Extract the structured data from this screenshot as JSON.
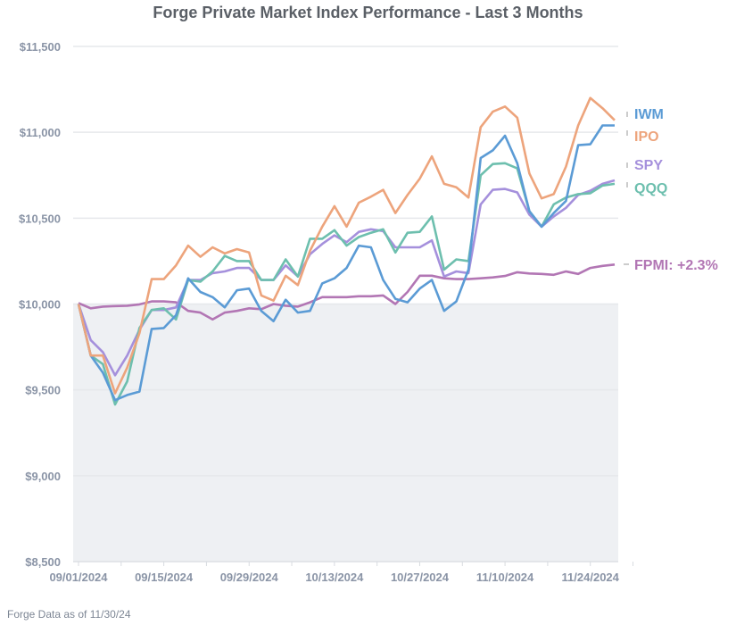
{
  "chart_data": {
    "type": "line",
    "title": "Forge Private Market Index Performance - Last 3 Months",
    "footer": "Forge Data as of 11/30/24",
    "ylim": [
      8500,
      11500
    ],
    "yticks": [
      "$11,500",
      "$11,000",
      "$10,500",
      "$10,000",
      "$9,500",
      "$9,000",
      "$8,500"
    ],
    "ytick_values": [
      11500,
      11000,
      10500,
      10000,
      9500,
      9000,
      8500
    ],
    "xticks": [
      "09/01/2024",
      "09/15/2024",
      "09/29/2024",
      "10/13/2024",
      "10/27/2024",
      "11/10/2024",
      "11/24/2024"
    ],
    "xtick_dates": [
      "2024-09-01",
      "2024-09-15",
      "2024-09-29",
      "2024-10-13",
      "2024-10-27",
      "2024-11-10",
      "2024-11-24"
    ],
    "xlim": [
      "2024-09-01",
      "2024-11-30"
    ],
    "baseline": 10000,
    "shade_below_baseline": true,
    "grid": true,
    "legend": "right, end-of-line labels",
    "x": [
      "2024-09-01",
      "2024-09-03",
      "2024-09-05",
      "2024-09-07",
      "2024-09-09",
      "2024-09-11",
      "2024-09-13",
      "2024-09-15",
      "2024-09-17",
      "2024-09-19",
      "2024-09-21",
      "2024-09-23",
      "2024-09-25",
      "2024-09-27",
      "2024-09-29",
      "2024-10-01",
      "2024-10-03",
      "2024-10-05",
      "2024-10-07",
      "2024-10-09",
      "2024-10-11",
      "2024-10-13",
      "2024-10-15",
      "2024-10-17",
      "2024-10-19",
      "2024-10-21",
      "2024-10-23",
      "2024-10-25",
      "2024-10-27",
      "2024-10-29",
      "2024-10-31",
      "2024-11-02",
      "2024-11-04",
      "2024-11-06",
      "2024-11-08",
      "2024-11-10",
      "2024-11-12",
      "2024-11-14",
      "2024-11-16",
      "2024-11-18",
      "2024-11-20",
      "2024-11-22",
      "2024-11-24",
      "2024-11-26",
      "2024-11-28"
    ],
    "series": [
      {
        "name": "IWM",
        "label": "IWM",
        "color": "#5b9bd5",
        "values": [
          10000,
          9700,
          9600,
          9440,
          9470,
          9490,
          9855,
          9860,
          9935,
          10150,
          10070,
          10040,
          9980,
          10080,
          10090,
          9960,
          9900,
          10025,
          9950,
          9960,
          10120,
          10150,
          10210,
          10340,
          10330,
          10140,
          10030,
          10010,
          10090,
          10140,
          9960,
          10015,
          10200,
          10850,
          10895,
          10980,
          10820,
          10540,
          10450,
          10530,
          10600,
          10925,
          10930,
          11040,
          11040
        ]
      },
      {
        "name": "IPO",
        "label": "IPO",
        "color": "#eda47c",
        "values": [
          10000,
          9700,
          9700,
          9480,
          9630,
          9830,
          10145,
          10145,
          10225,
          10340,
          10275,
          10330,
          10295,
          10320,
          10300,
          10050,
          10020,
          10165,
          10110,
          10310,
          10450,
          10570,
          10450,
          10590,
          10625,
          10665,
          10530,
          10635,
          10730,
          10860,
          10700,
          10680,
          10620,
          11030,
          11120,
          11150,
          11085,
          10760,
          10615,
          10640,
          10800,
          11040,
          11200,
          11140,
          11070
        ]
      },
      {
        "name": "SPY",
        "label": "SPY",
        "color": "#a590dc",
        "values": [
          10000,
          9790,
          9720,
          9585,
          9700,
          9850,
          9965,
          9965,
          9980,
          10140,
          10140,
          10180,
          10190,
          10210,
          10210,
          10140,
          10140,
          10225,
          10160,
          10290,
          10350,
          10400,
          10360,
          10420,
          10435,
          10425,
          10330,
          10330,
          10330,
          10370,
          10160,
          10190,
          10180,
          10580,
          10665,
          10670,
          10650,
          10520,
          10450,
          10510,
          10560,
          10635,
          10660,
          10700,
          10720
        ]
      },
      {
        "name": "QQQ",
        "label": "QQQ",
        "color": "#6dbfae",
        "values": [
          10000,
          9700,
          9650,
          9415,
          9550,
          9860,
          9965,
          9975,
          9910,
          10140,
          10130,
          10190,
          10280,
          10250,
          10250,
          10140,
          10140,
          10260,
          10160,
          10380,
          10380,
          10430,
          10340,
          10390,
          10415,
          10435,
          10300,
          10415,
          10420,
          10510,
          10200,
          10260,
          10250,
          10750,
          10815,
          10820,
          10790,
          10540,
          10450,
          10580,
          10620,
          10640,
          10645,
          10690,
          10700
        ]
      },
      {
        "name": "FPMI",
        "label": "FPMI: +2.3%",
        "color": "#b276b4",
        "values": [
          10005,
          9975,
          9985,
          9988,
          9990,
          9998,
          10015,
          10015,
          10010,
          9960,
          9950,
          9910,
          9950,
          9960,
          9975,
          9970,
          10000,
          9990,
          9985,
          10010,
          10040,
          10040,
          10040,
          10045,
          10045,
          10050,
          10000,
          10070,
          10165,
          10165,
          10150,
          10145,
          10145,
          10150,
          10155,
          10163,
          10185,
          10178,
          10175,
          10170,
          10190,
          10175,
          10210,
          10222,
          10230
        ]
      }
    ],
    "colors": {
      "title": "#5a5f66",
      "axis_text": "#8a94a6",
      "shade": "#eef0f3",
      "grid": "#e6e8eb"
    }
  }
}
